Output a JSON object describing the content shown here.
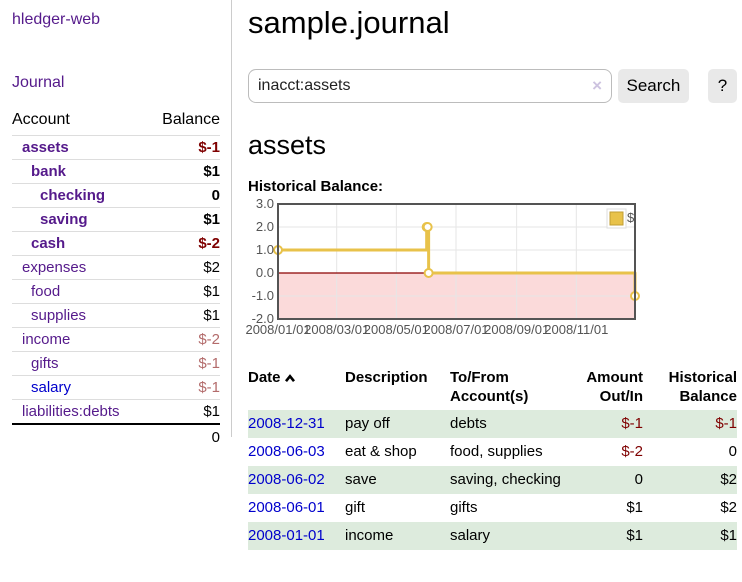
{
  "app": {
    "title": "hledger-web",
    "nav": {
      "journal": "Journal"
    }
  },
  "sidebar": {
    "header": {
      "account": "Account",
      "balance": "Balance"
    },
    "accounts": [
      {
        "name": "assets",
        "indent": 0,
        "bold": true,
        "balance": "$-1",
        "neg": "strong",
        "link_color": "purple"
      },
      {
        "name": "bank",
        "indent": 1,
        "bold": true,
        "balance": "$1",
        "neg": "",
        "link_color": "purple"
      },
      {
        "name": "checking",
        "indent": 2,
        "bold": true,
        "balance": "0",
        "neg": "",
        "link_color": "purple"
      },
      {
        "name": "saving",
        "indent": 2,
        "bold": true,
        "balance": "$1",
        "neg": "",
        "link_color": "purple"
      },
      {
        "name": "cash",
        "indent": 1,
        "bold": true,
        "balance": "$-2",
        "neg": "strong",
        "link_color": "purple"
      },
      {
        "name": "expenses",
        "indent": 0,
        "bold": false,
        "balance": "$2",
        "neg": "",
        "link_color": "purple"
      },
      {
        "name": "food",
        "indent": 1,
        "bold": false,
        "balance": "$1",
        "neg": "",
        "link_color": "purple"
      },
      {
        "name": "supplies",
        "indent": 1,
        "bold": false,
        "balance": "$1",
        "neg": "",
        "link_color": "purple"
      },
      {
        "name": "income",
        "indent": 0,
        "bold": false,
        "balance": "$-2",
        "neg": "soft",
        "link_color": "purple"
      },
      {
        "name": "gifts",
        "indent": 1,
        "bold": false,
        "balance": "$-1",
        "neg": "soft",
        "link_color": "purple"
      },
      {
        "name": "salary",
        "indent": 1,
        "bold": false,
        "balance": "$-1",
        "neg": "soft",
        "link_color": "blue"
      },
      {
        "name": "liabilities:debts",
        "indent": 0,
        "bold": false,
        "balance": "$1",
        "neg": "",
        "link_color": "purple"
      }
    ],
    "total": "0"
  },
  "header": {
    "title": "sample.journal"
  },
  "search": {
    "value": "inacct:assets",
    "clear_icon": "×",
    "button_label": "Search",
    "help_label": "?"
  },
  "account_view": {
    "heading": "assets",
    "chart_title": "Historical Balance:"
  },
  "chart_data": {
    "type": "line",
    "title": "Historical Balance:",
    "series": [
      {
        "name": "$",
        "color": "#e8c24a",
        "style": "steps",
        "points": [
          [
            "2008-01-01",
            1
          ],
          [
            "2008-06-01",
            2
          ],
          [
            "2008-06-02",
            2
          ],
          [
            "2008-06-03",
            0
          ],
          [
            "2008-12-31",
            -1
          ]
        ]
      }
    ],
    "x_range": [
      "2008-01-01",
      "2008-12-31"
    ],
    "y_range": [
      -2,
      3
    ],
    "x_ticks": [
      "2008-01-01",
      "2008-03-01",
      "2008-05-01",
      "2008-07-01",
      "2008-09-01",
      "2008-11-01"
    ],
    "x_tick_format": "YYYY/MM/DD",
    "y_ticks": [
      3,
      2,
      1,
      0,
      -1,
      -2
    ],
    "grid": true,
    "legend_position": "top-right",
    "colors": {
      "negative_region": "#fbdada",
      "zero_line": "#8b0000",
      "border": "#545454",
      "gridline": "#e6e6e6",
      "tick_text": "#545454",
      "point_fill": "#ffffff",
      "legend_square_border": "#c19e33"
    }
  },
  "register": {
    "columns": {
      "date": "Date",
      "description": "Description",
      "accounts": "To/From Account(s)",
      "amount": "Amount Out/In",
      "balance": "Historical Balance"
    },
    "sort": {
      "column": "date",
      "direction": "ascending"
    },
    "rows": [
      {
        "date": "2008-12-31",
        "description": "pay off",
        "accounts": "debts",
        "amount": "$-1",
        "balance": "$-1"
      },
      {
        "date": "2008-06-03",
        "description": "eat & shop",
        "accounts": "food, supplies",
        "amount": "$-2",
        "balance": "0"
      },
      {
        "date": "2008-06-02",
        "description": "save",
        "accounts": "saving, checking",
        "amount": "0",
        "balance": "$2"
      },
      {
        "date": "2008-06-01",
        "description": "gift",
        "accounts": "gifts",
        "amount": "$1",
        "balance": "$2"
      },
      {
        "date": "2008-01-01",
        "description": "income",
        "accounts": "salary",
        "amount": "$1",
        "balance": "$1"
      }
    ]
  }
}
